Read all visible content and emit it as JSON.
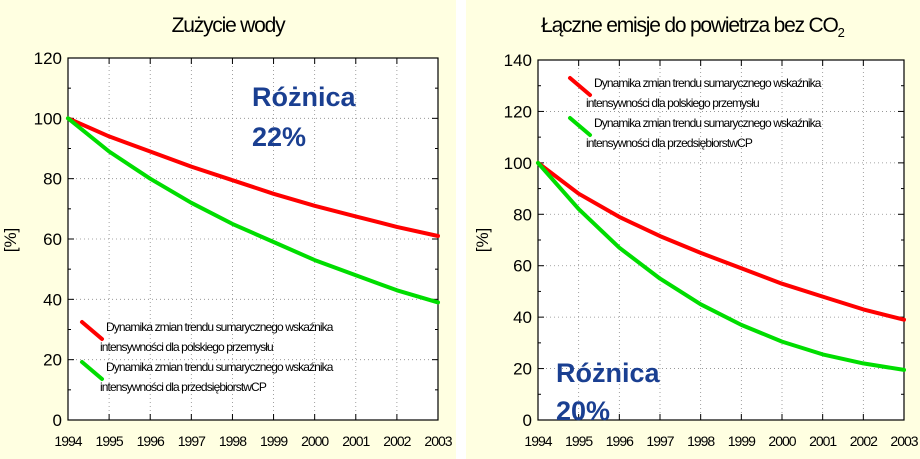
{
  "chart_data": [
    {
      "type": "line",
      "title": "Zużycie wody",
      "ylabel": "[%]",
      "xlabel": "",
      "ylim": [
        0,
        120
      ],
      "yticks": [
        "0",
        "20",
        "40",
        "60",
        "80",
        "100",
        "120"
      ],
      "xlim": [
        1994,
        2003
      ],
      "xticks": [
        "1994",
        "1995",
        "1996",
        "1997",
        "1998",
        "1999",
        "2000",
        "2001",
        "2002",
        "2003"
      ],
      "grid": true,
      "legend_placement": "bottom-left",
      "annotation_lines": [
        "Różnica",
        "22%"
      ],
      "series": [
        {
          "name": "Dynamika zmian trendu sumarycznego wskaźnika intensywności dla polskiego przemysłu",
          "legend_lines": [
            "Dynamika zmian trendu sumarycznego wskaźnika",
            "intensywności dla polskiego przemysłu"
          ],
          "color": "#ff0000",
          "x": [
            1994,
            1995,
            1996,
            1997,
            1998,
            1999,
            2000,
            2001,
            2002,
            2003
          ],
          "values": [
            100,
            94,
            89,
            84,
            79.5,
            75,
            71,
            67.5,
            64,
            61
          ]
        },
        {
          "name": "Dynamika zmian trendu sumarycznego wskaźnika intensywności dla przedsiębiorstw CP",
          "legend_lines": [
            "Dynamika zmian trendu sumarycznego wskaźnika",
            "intensywności dla przedsiębiorstwCP"
          ],
          "color": "#00dd00",
          "x": [
            1994,
            1995,
            1996,
            1997,
            1998,
            1999,
            2000,
            2001,
            2002,
            2003
          ],
          "values": [
            100,
            89,
            80,
            72,
            65,
            59,
            53,
            48,
            43,
            39
          ]
        }
      ]
    },
    {
      "type": "line",
      "title": "Łączne emisje do powietrza bez CO",
      "title_sub": "2",
      "ylabel": "[%]",
      "xlabel": "",
      "ylim": [
        0,
        140
      ],
      "yticks": [
        "0",
        "20",
        "40",
        "60",
        "80",
        "100",
        "120",
        "140"
      ],
      "xlim": [
        1994,
        2003
      ],
      "xticks": [
        "1994",
        "1995",
        "1996",
        "1997",
        "1998",
        "1999",
        "2000",
        "2001",
        "2002",
        "2003"
      ],
      "grid": true,
      "legend_placement": "top-right",
      "annotation_lines": [
        "Różnica",
        "20%"
      ],
      "series": [
        {
          "name": "Dynamika zmian trendu sumarycznego wskaźnika intensywności dla polskiego przemysłu",
          "legend_lines": [
            "Dynamika zmian trendu sumarycznego wskaźnika",
            "intensywności dla polskiego przemysłu"
          ],
          "color": "#ff0000",
          "x": [
            1994,
            1995,
            1996,
            1997,
            1998,
            1999,
            2000,
            2001,
            2002,
            2003
          ],
          "values": [
            100,
            88,
            79,
            71.5,
            65,
            59,
            53,
            48,
            43,
            39
          ]
        },
        {
          "name": "Dynamika zmian trendu sumarycznego wskaźnika intensywności dla przedsiębiorstw CP",
          "legend_lines": [
            "Dynamika zmian trendu sumarycznego wskaźnika",
            "intensywności dla przedsiębiorstwCP"
          ],
          "color": "#00dd00",
          "x": [
            1994,
            1995,
            1996,
            1997,
            1998,
            1999,
            2000,
            2001,
            2002,
            2003
          ],
          "values": [
            100,
            82,
            67,
            55,
            45,
            37,
            30.5,
            25.5,
            22,
            19.5
          ]
        }
      ]
    }
  ]
}
